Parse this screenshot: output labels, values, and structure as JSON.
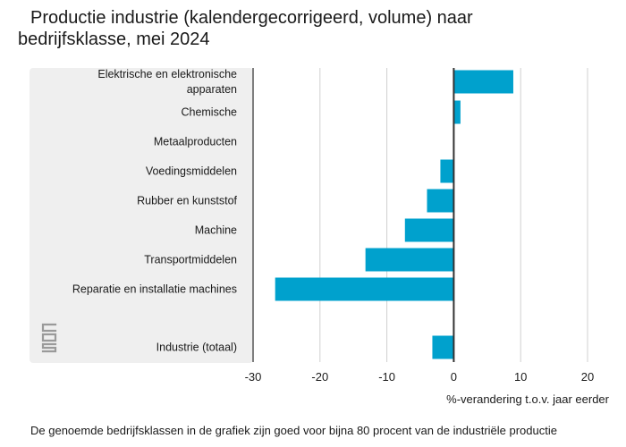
{
  "title_line1": "Productie industrie (kalendergecorrigeerd, volume) naar",
  "title_line2": "bedrijfsklasse, mei 2024",
  "footnote": "De genoemde bedrijfsklassen in de grafiek zijn goed voor bijna 80 procent van de industriële productie",
  "logo_icon": "cbs-logo-icon",
  "colors": {
    "bar": "#00a1cd",
    "grid": "#d0d0d0",
    "axis": "#333333",
    "panel": "#efefef"
  },
  "chart_data": {
    "type": "bar",
    "orientation": "horizontal",
    "categories": [
      [
        "Elektrische en elektronische",
        "apparaten"
      ],
      [
        "Chemische"
      ],
      [
        "Metaalproducten"
      ],
      [
        "Voedingsmiddelen"
      ],
      [
        "Rubber en kunststof"
      ],
      [
        "Machine"
      ],
      [
        "Transportmiddelen"
      ],
      [
        "Reparatie en installatie machines"
      ],
      [
        "Industrie (totaal)"
      ]
    ],
    "values": [
      8.9,
      1.0,
      0.0,
      -2.0,
      -4.0,
      -7.3,
      -13.2,
      -26.7,
      -3.2
    ],
    "xlim": [
      -30,
      20
    ],
    "xticks": [
      -30,
      -20,
      -10,
      0,
      10,
      20
    ],
    "xlabel": "%-verandering t.o.v. jaar eerder",
    "ylabel": "",
    "grid": true
  }
}
